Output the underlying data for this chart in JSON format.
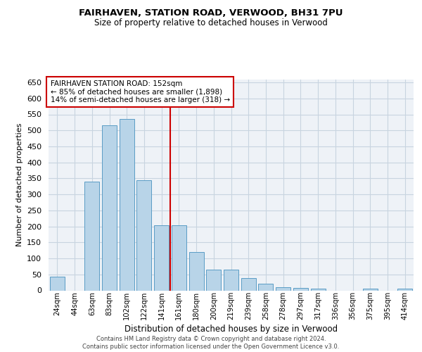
{
  "title": "FAIRHAVEN, STATION ROAD, VERWOOD, BH31 7PU",
  "subtitle": "Size of property relative to detached houses in Verwood",
  "xlabel": "Distribution of detached houses by size in Verwood",
  "ylabel": "Number of detached properties",
  "categories": [
    "24sqm",
    "44sqm",
    "63sqm",
    "83sqm",
    "102sqm",
    "122sqm",
    "141sqm",
    "161sqm",
    "180sqm",
    "200sqm",
    "219sqm",
    "239sqm",
    "258sqm",
    "278sqm",
    "297sqm",
    "317sqm",
    "336sqm",
    "356sqm",
    "375sqm",
    "395sqm",
    "414sqm"
  ],
  "values": [
    42,
    0,
    340,
    515,
    535,
    345,
    203,
    203,
    120,
    65,
    65,
    38,
    20,
    10,
    8,
    5,
    0,
    0,
    5,
    0,
    5
  ],
  "bar_color": "#b8d4e8",
  "bar_edge_color": "#5a9cc5",
  "vertical_line_x": 6.5,
  "vertical_line_color": "#cc0000",
  "annotation_text_line1": "FAIRHAVEN STATION ROAD: 152sqm",
  "annotation_text_line2": "← 85% of detached houses are smaller (1,898)",
  "annotation_text_line3": "14% of semi-detached houses are larger (318) →",
  "annotation_box_color": "#ffffff",
  "annotation_border_color": "#cc0000",
  "ylim": [
    0,
    660
  ],
  "yticks": [
    0,
    50,
    100,
    150,
    200,
    250,
    300,
    350,
    400,
    450,
    500,
    550,
    600,
    650
  ],
  "grid_color": "#c8d4e0",
  "background_color": "#eef2f7",
  "footer_line1": "Contains HM Land Registry data © Crown copyright and database right 2024.",
  "footer_line2": "Contains public sector information licensed under the Open Government Licence v3.0."
}
